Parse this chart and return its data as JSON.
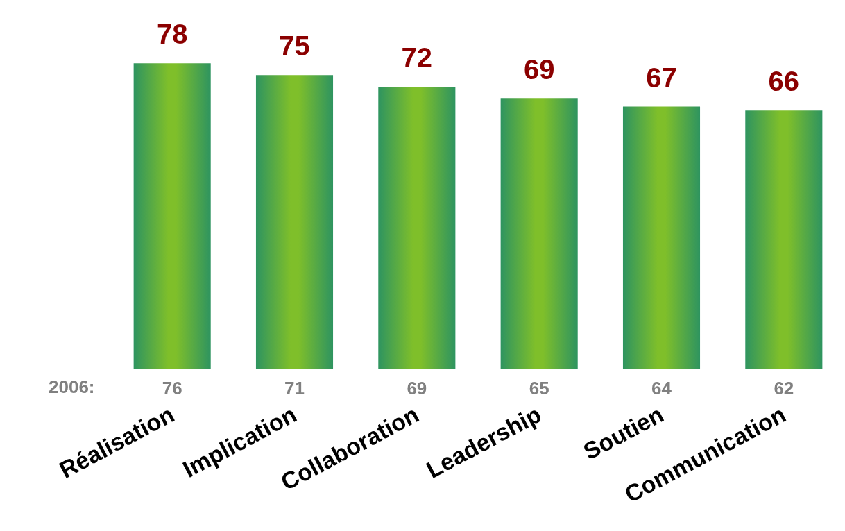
{
  "chart_data": {
    "type": "bar",
    "categories": [
      "Réalisation",
      "Implication",
      "Collaboration",
      "Leadership",
      "Soutien",
      "Communication"
    ],
    "values": [
      78,
      75,
      72,
      69,
      67,
      66
    ],
    "color": "#7fbf2a",
    "data_labels": true,
    "annotations": [
      "2006:",
      "76",
      "71",
      "69",
      "65",
      "64",
      "62"
    ]
  }
}
